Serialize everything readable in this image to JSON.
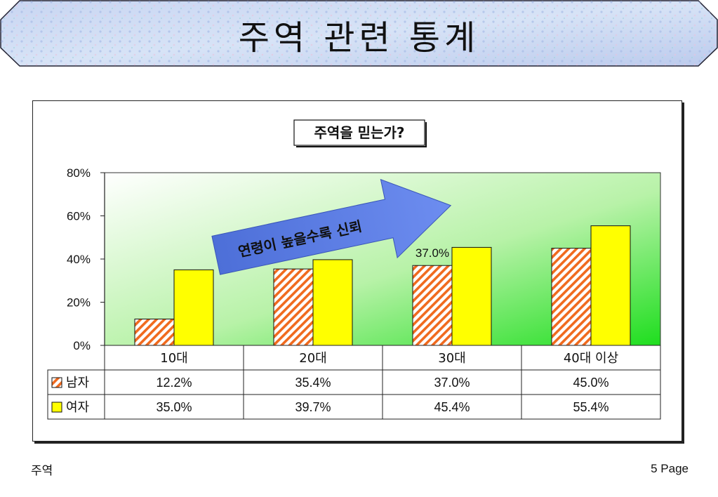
{
  "slide_title": "주역 관련 통계",
  "footer": {
    "left": "주역",
    "right": "5 Page"
  },
  "chart_data": {
    "type": "bar",
    "title": "주역을 믿는가?",
    "categories": [
      "10대",
      "20대",
      "30대",
      "40대 이상"
    ],
    "series": [
      {
        "name": "남자",
        "values": [
          12.2,
          35.4,
          37.0,
          45.0
        ],
        "labels": [
          "12.2%",
          "35.4%",
          "37.0%",
          "45.0%"
        ],
        "color": "#F06A1E",
        "pattern": "diagonal-hatch"
      },
      {
        "name": "여자",
        "values": [
          35.0,
          39.7,
          45.4,
          55.4
        ],
        "labels": [
          "35.0%",
          "39.7%",
          "45.4%",
          "55.4%"
        ],
        "color": "#FFFF00"
      }
    ],
    "ylim": [
      0,
      80
    ],
    "yticks": [
      0,
      20,
      40,
      60,
      80
    ],
    "ytick_labels": [
      "0%",
      "20%",
      "40%",
      "60%",
      "80%"
    ],
    "annotation_label": "37.0%",
    "arrow_text": "연령이 높을수록 신뢰",
    "plot_background": "linear-gradient white to green",
    "data_table": true
  }
}
